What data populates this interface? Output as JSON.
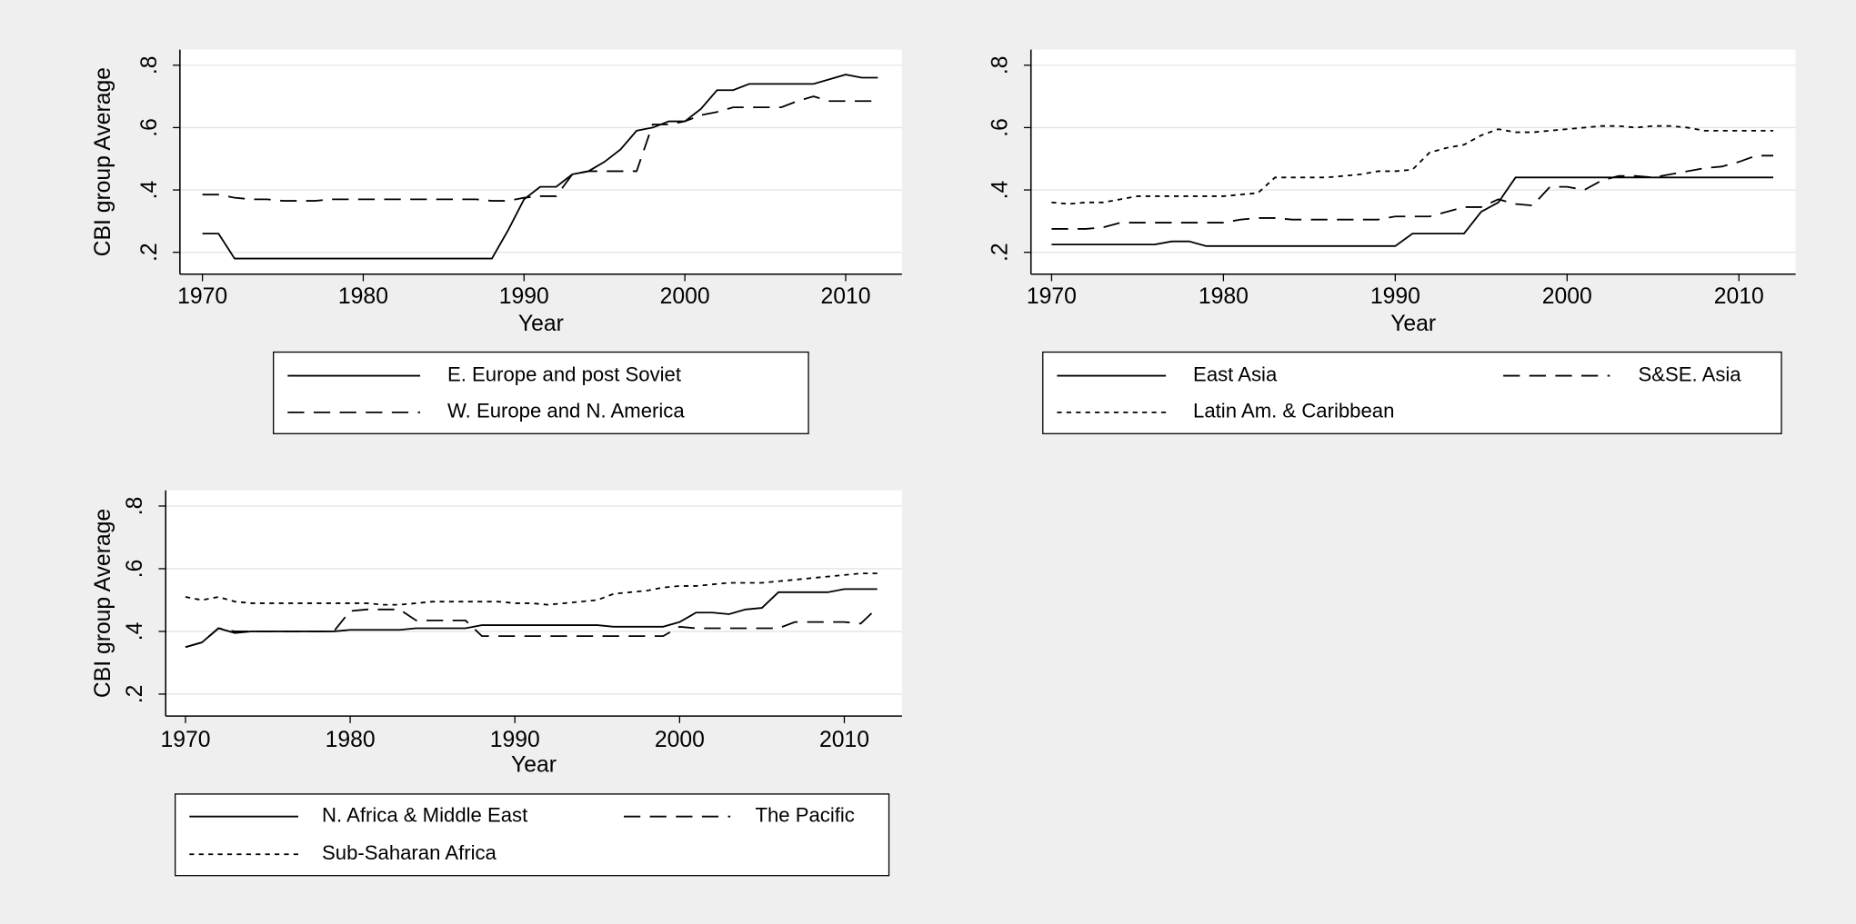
{
  "chart_data": [
    {
      "type": "line",
      "ylabel": "CBI group Average",
      "xlabel": "Year",
      "grid": true,
      "x": [
        1970,
        1971,
        1972,
        1973,
        1974,
        1975,
        1976,
        1977,
        1978,
        1979,
        1980,
        1981,
        1982,
        1983,
        1984,
        1985,
        1986,
        1987,
        1988,
        1989,
        1990,
        1991,
        1992,
        1993,
        1994,
        1995,
        1996,
        1997,
        1998,
        1999,
        2000,
        2001,
        2002,
        2003,
        2004,
        2005,
        2006,
        2007,
        2008,
        2009,
        2010,
        2011,
        2012
      ],
      "xlim": [
        1968.6,
        2013.5
      ],
      "xticks": [
        1970,
        1980,
        1990,
        2000,
        2010
      ],
      "ylim": [
        0.13,
        0.85
      ],
      "yticks": [
        {
          "value": 0.2,
          "label": ".2"
        },
        {
          "value": 0.4,
          "label": ".4"
        },
        {
          "value": 0.6,
          "label": ".6"
        },
        {
          "value": 0.8,
          "label": ".8"
        }
      ],
      "series": [
        {
          "name": "E. Europe and post Soviet",
          "color": "#000000",
          "style": "solid",
          "values": [
            0.26,
            0.26,
            0.18,
            0.18,
            0.18,
            0.18,
            0.18,
            0.18,
            0.18,
            0.18,
            0.18,
            0.18,
            0.18,
            0.18,
            0.18,
            0.18,
            0.18,
            0.18,
            0.18,
            0.27,
            0.37,
            0.41,
            0.41,
            0.45,
            0.46,
            0.49,
            0.53,
            0.59,
            0.6,
            0.62,
            0.62,
            0.66,
            0.72,
            0.72,
            0.74,
            0.74,
            0.74,
            0.74,
            0.74,
            0.755,
            0.77,
            0.76,
            0.76
          ]
        },
        {
          "name": "W. Europe and N. America",
          "color": "#000000",
          "style": "dashed",
          "values": [
            0.385,
            0.385,
            0.375,
            0.37,
            0.37,
            0.365,
            0.365,
            0.365,
            0.37,
            0.37,
            0.37,
            0.37,
            0.37,
            0.37,
            0.37,
            0.37,
            0.37,
            0.37,
            0.365,
            0.365,
            0.375,
            0.38,
            0.38,
            0.45,
            0.46,
            0.46,
            0.46,
            0.46,
            0.61,
            0.61,
            0.62,
            0.64,
            0.65,
            0.665,
            0.665,
            0.665,
            0.665,
            0.685,
            0.7,
            0.685,
            0.685,
            0.685,
            0.685
          ]
        }
      ]
    },
    {
      "type": "line",
      "xlabel": "Year",
      "grid": true,
      "x": [
        1970,
        1971,
        1972,
        1973,
        1974,
        1975,
        1976,
        1977,
        1978,
        1979,
        1980,
        1981,
        1982,
        1983,
        1984,
        1985,
        1986,
        1987,
        1988,
        1989,
        1990,
        1991,
        1992,
        1993,
        1994,
        1995,
        1996,
        1997,
        1998,
        1999,
        2000,
        2001,
        2002,
        2003,
        2004,
        2005,
        2006,
        2007,
        2008,
        2009,
        2010,
        2011,
        2012
      ],
      "xlim": [
        1968.8,
        2013.3
      ],
      "xticks": [
        1970,
        1980,
        1990,
        2000,
        2010
      ],
      "ylim": [
        0.13,
        0.85
      ],
      "yticks": [
        {
          "value": 0.2,
          "label": ".2"
        },
        {
          "value": 0.4,
          "label": ".4"
        },
        {
          "value": 0.6,
          "label": ".6"
        },
        {
          "value": 0.8,
          "label": ".8"
        }
      ],
      "series": [
        {
          "name": "East Asia",
          "color": "#000000",
          "style": "solid",
          "values": [
            0.225,
            0.225,
            0.225,
            0.225,
            0.225,
            0.225,
            0.225,
            0.235,
            0.235,
            0.22,
            0.22,
            0.22,
            0.22,
            0.22,
            0.22,
            0.22,
            0.22,
            0.22,
            0.22,
            0.22,
            0.22,
            0.26,
            0.26,
            0.26,
            0.26,
            0.33,
            0.36,
            0.44,
            0.44,
            0.44,
            0.44,
            0.44,
            0.44,
            0.44,
            0.44,
            0.44,
            0.44,
            0.44,
            0.44,
            0.44,
            0.44,
            0.44,
            0.44
          ]
        },
        {
          "name": "S&SE. Asia",
          "color": "#000000",
          "style": "dashed",
          "values": [
            0.275,
            0.275,
            0.275,
            0.28,
            0.295,
            0.295,
            0.295,
            0.295,
            0.295,
            0.295,
            0.295,
            0.305,
            0.31,
            0.31,
            0.305,
            0.305,
            0.305,
            0.305,
            0.305,
            0.305,
            0.315,
            0.315,
            0.315,
            0.33,
            0.345,
            0.345,
            0.37,
            0.355,
            0.35,
            0.41,
            0.41,
            0.4,
            0.43,
            0.445,
            0.445,
            0.44,
            0.45,
            0.46,
            0.47,
            0.475,
            0.49,
            0.51,
            0.51
          ]
        },
        {
          "name": "Latin Am. & Caribbean",
          "color": "#000000",
          "style": "dotted",
          "values": [
            0.36,
            0.355,
            0.36,
            0.36,
            0.37,
            0.38,
            0.38,
            0.38,
            0.38,
            0.38,
            0.38,
            0.385,
            0.39,
            0.44,
            0.44,
            0.44,
            0.44,
            0.445,
            0.45,
            0.46,
            0.46,
            0.465,
            0.52,
            0.535,
            0.545,
            0.575,
            0.595,
            0.585,
            0.585,
            0.59,
            0.595,
            0.6,
            0.605,
            0.605,
            0.6,
            0.605,
            0.605,
            0.6,
            0.59,
            0.59,
            0.59,
            0.59,
            0.59
          ]
        }
      ]
    },
    {
      "type": "line",
      "ylabel": "CBI group Average",
      "xlabel": "Year",
      "grid": true,
      "x": [
        1970,
        1971,
        1972,
        1973,
        1974,
        1975,
        1976,
        1977,
        1978,
        1979,
        1980,
        1981,
        1982,
        1983,
        1984,
        1985,
        1986,
        1987,
        1988,
        1989,
        1990,
        1991,
        1992,
        1993,
        1994,
        1995,
        1996,
        1997,
        1998,
        1999,
        2000,
        2001,
        2002,
        2003,
        2004,
        2005,
        2006,
        2007,
        2008,
        2009,
        2010,
        2011,
        2012
      ],
      "xlim": [
        1968.8,
        2013.5
      ],
      "xticks": [
        1970,
        1980,
        1990,
        2000,
        2010
      ],
      "ylim": [
        0.13,
        0.85
      ],
      "yticks": [
        {
          "value": 0.2,
          "label": ".2"
        },
        {
          "value": 0.4,
          "label": ".4"
        },
        {
          "value": 0.6,
          "label": ".6"
        },
        {
          "value": 0.8,
          "label": ".8"
        }
      ],
      "series": [
        {
          "name": "N. Africa & Middle East",
          "color": "#000000",
          "style": "solid",
          "values": [
            0.35,
            0.365,
            0.41,
            0.395,
            0.4,
            0.4,
            0.4,
            0.4,
            0.4,
            0.4,
            0.405,
            0.405,
            0.405,
            0.405,
            0.41,
            0.41,
            0.41,
            0.41,
            0.42,
            0.42,
            0.42,
            0.42,
            0.42,
            0.42,
            0.42,
            0.42,
            0.415,
            0.415,
            0.415,
            0.415,
            0.43,
            0.46,
            0.46,
            0.455,
            0.47,
            0.475,
            0.525,
            0.525,
            0.525,
            0.525,
            0.535,
            0.535,
            0.535
          ]
        },
        {
          "name": "The Pacific",
          "color": "#000000",
          "style": "dashed",
          "values": [
            0.35,
            0.365,
            0.41,
            0.4,
            0.4,
            0.4,
            0.4,
            0.4,
            0.4,
            0.4,
            0.465,
            0.47,
            0.47,
            0.47,
            0.435,
            0.435,
            0.435,
            0.435,
            0.385,
            0.385,
            0.385,
            0.385,
            0.385,
            0.385,
            0.385,
            0.385,
            0.385,
            0.385,
            0.385,
            0.385,
            0.415,
            0.41,
            0.41,
            0.41,
            0.41,
            0.41,
            0.41,
            0.43,
            0.43,
            0.43,
            0.43,
            0.425,
            0.475
          ]
        },
        {
          "name": "Sub-Saharan Africa",
          "color": "#000000",
          "style": "dotted",
          "values": [
            0.51,
            0.5,
            0.51,
            0.495,
            0.49,
            0.49,
            0.49,
            0.49,
            0.49,
            0.49,
            0.49,
            0.49,
            0.485,
            0.485,
            0.49,
            0.495,
            0.495,
            0.495,
            0.495,
            0.495,
            0.49,
            0.49,
            0.485,
            0.49,
            0.495,
            0.5,
            0.52,
            0.525,
            0.53,
            0.54,
            0.545,
            0.545,
            0.55,
            0.555,
            0.555,
            0.555,
            0.56,
            0.565,
            0.57,
            0.575,
            0.58,
            0.585,
            0.585
          ]
        }
      ]
    }
  ]
}
